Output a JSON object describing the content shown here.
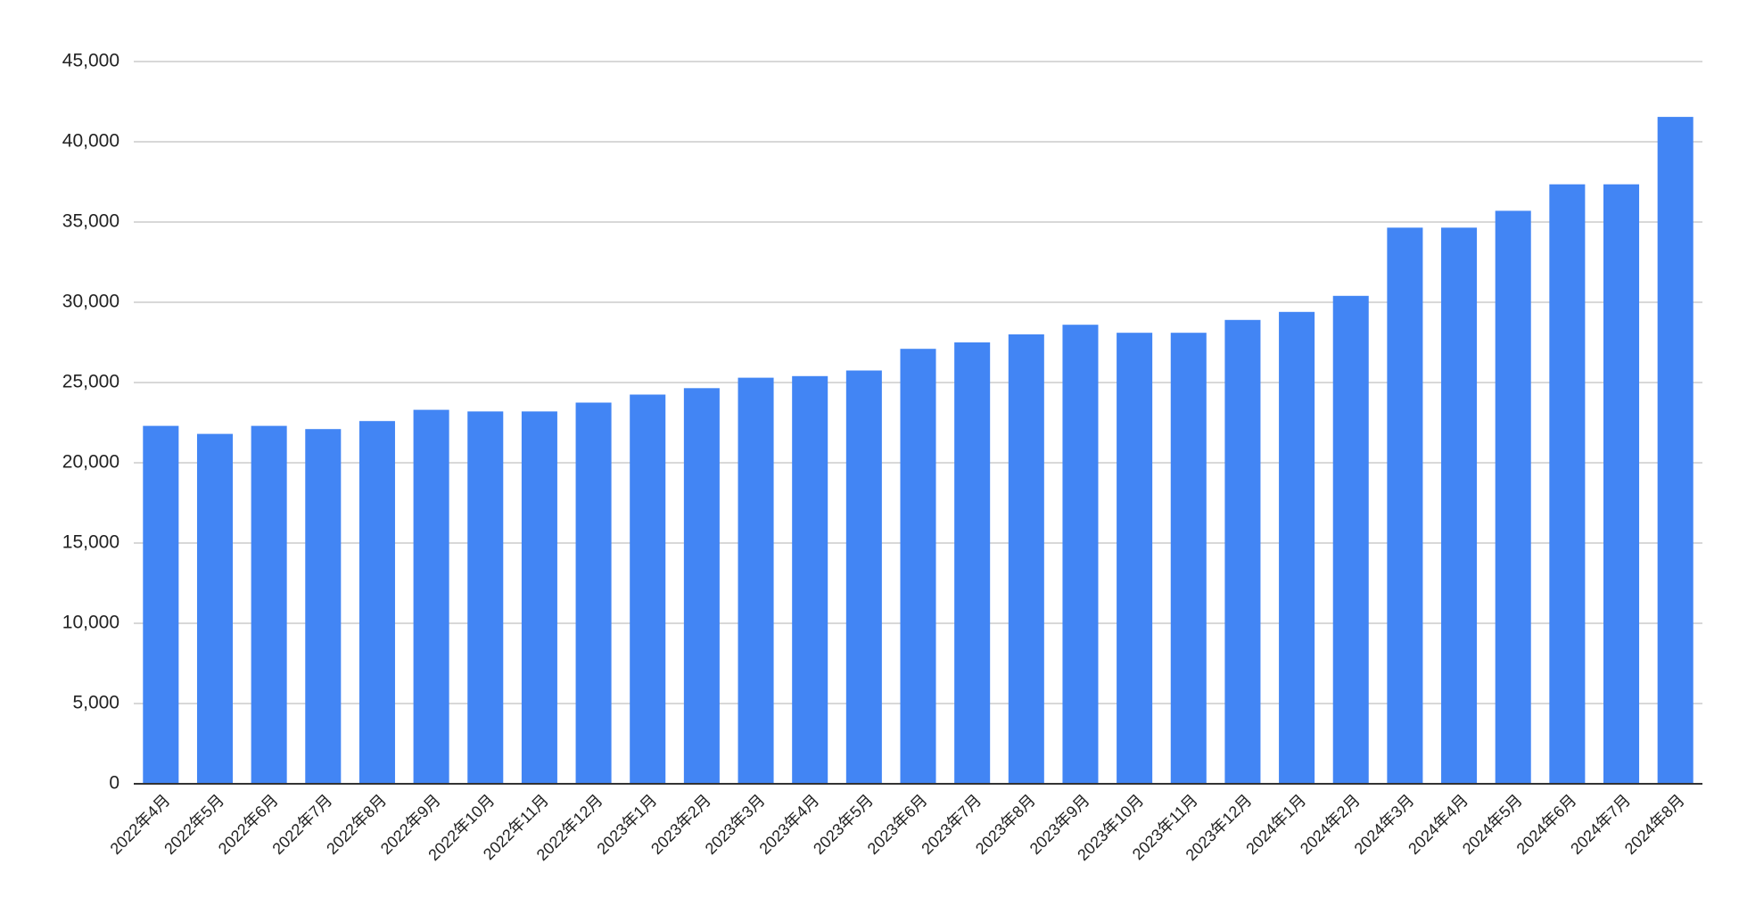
{
  "chart_data": {
    "type": "bar",
    "categories": [
      "2022年4月",
      "2022年5月",
      "2022年6月",
      "2022年7月",
      "2022年8月",
      "2022年9月",
      "2022年10月",
      "2022年11月",
      "2022年12月",
      "2023年1月",
      "2023年2月",
      "2023年3月",
      "2023年4月",
      "2023年5月",
      "2023年6月",
      "2023年7月",
      "2023年8月",
      "2023年9月",
      "2023年10月",
      "2023年11月",
      "2023年12月",
      "2024年1月",
      "2024年2月",
      "2024年3月",
      "2024年4月",
      "2024年5月",
      "2024年6月",
      "2024年7月",
      "2024年8月"
    ],
    "values": [
      22300,
      21800,
      22300,
      22100,
      22600,
      23300,
      23200,
      23200,
      23750,
      24250,
      24650,
      25300,
      25400,
      25750,
      27100,
      27500,
      28000,
      28600,
      28100,
      28100,
      28900,
      29400,
      30400,
      34650,
      34650,
      35700,
      37350,
      37350,
      41550
    ],
    "color": "#4285f4",
    "ylim": [
      0,
      45000
    ],
    "yticks": [
      0,
      {
        "value": 5000,
        "label": "5,000"
      },
      {
        "value": 10000,
        "label": "10,000"
      },
      {
        "value": 15000,
        "label": "15,000"
      },
      {
        "value": 20000,
        "label": "20,000"
      },
      {
        "value": 25000,
        "label": "25,000"
      },
      {
        "value": 30000,
        "label": "30,000"
      },
      {
        "value": 35000,
        "label": "35,000"
      },
      {
        "value": 40000,
        "label": "40,000"
      },
      {
        "value": 45000,
        "label": "45,000"
      }
    ],
    "grid": true
  }
}
